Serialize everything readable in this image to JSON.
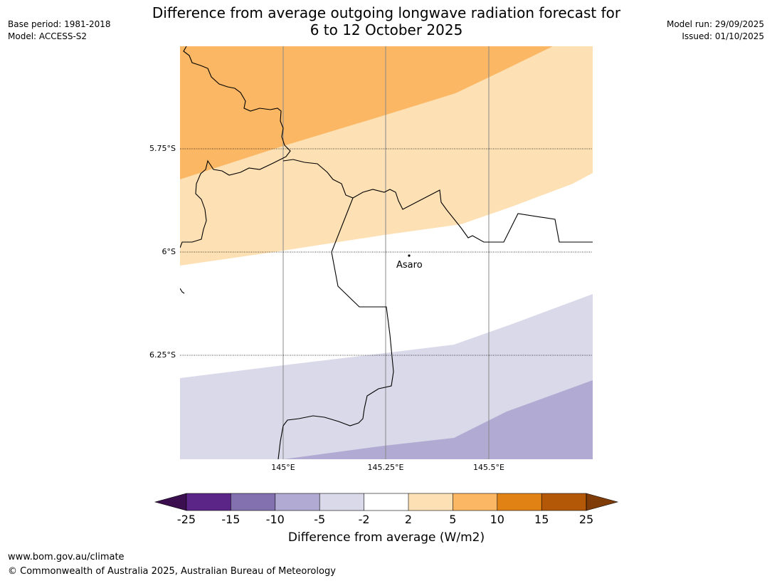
{
  "header": {
    "title_line1": "Difference from average outgoing longwave radiation forecast for",
    "title_line2": "6 to 12 October 2025",
    "base_period": "Base period: 1981-2018",
    "model": "Model: ACCESS-S2",
    "model_run": "Model run: 29/09/2025",
    "issued": "Issued: 01/10/2025"
  },
  "map": {
    "lat_labels": [
      "5.75°S",
      "6°S",
      "6.25°S"
    ],
    "lon_labels": [
      "145°E",
      "145.25°E",
      "145.5°E"
    ],
    "place": "Asaro"
  },
  "legend": {
    "ticks": [
      "-25",
      "-15",
      "-10",
      "-5",
      "-2",
      "2",
      "5",
      "10",
      "15",
      "25"
    ],
    "label": "Difference from average (W/m2)",
    "colors": [
      "#3b0f4f",
      "#5a2586",
      "#8370ae",
      "#b1aad2",
      "#d9d9ea",
      "#ffffff",
      "#fde0b3",
      "#fbb763",
      "#e08214",
      "#b35806",
      "#7f3b08"
    ]
  },
  "footer": {
    "url": "www.bom.gov.au/climate",
    "copyright": "© Commonwealth of Australia 2025, Australian Bureau of Meteorology"
  }
}
